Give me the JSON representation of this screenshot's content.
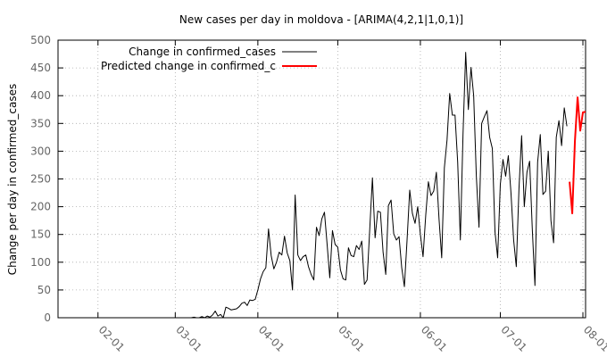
{
  "chart_data": {
    "type": "line",
    "title": "New cases per day in moldova -  [ARIMA(4,2,1|1,0,1)]",
    "xlabel": "",
    "ylabel": "Change per day in confirmed_cases",
    "ylim": [
      0,
      500
    ],
    "xlim": [
      "2020-01-17",
      "2020-08-02"
    ],
    "grid": true,
    "legend_position": "top-left",
    "y_ticks": [
      "0",
      "50",
      "100",
      "150",
      "200",
      "250",
      "300",
      "350",
      "400",
      "450",
      "500"
    ],
    "x_ticks": [
      {
        "date": "2020-02-01",
        "label": "02-01"
      },
      {
        "date": "2020-03-01",
        "label": "03-01"
      },
      {
        "date": "2020-04-01",
        "label": "04-01"
      },
      {
        "date": "2020-05-01",
        "label": "05-01"
      },
      {
        "date": "2020-06-01",
        "label": "06-01"
      },
      {
        "date": "2020-07-01",
        "label": "07-01"
      },
      {
        "date": "2020-08-01",
        "label": "08-01"
      }
    ],
    "series": [
      {
        "name": "Change in confirmed_cases",
        "color": "#000000",
        "points": [
          [
            "2020-01-22",
            0
          ],
          [
            "2020-02-01",
            0
          ],
          [
            "2020-02-15",
            0
          ],
          [
            "2020-03-01",
            0
          ],
          [
            "2020-03-07",
            0
          ],
          [
            "2020-03-08",
            1
          ],
          [
            "2020-03-09",
            0
          ],
          [
            "2020-03-10",
            0
          ],
          [
            "2020-03-11",
            2
          ],
          [
            "2020-03-12",
            0
          ],
          [
            "2020-03-13",
            3
          ],
          [
            "2020-03-14",
            1
          ],
          [
            "2020-03-15",
            5
          ],
          [
            "2020-03-16",
            12
          ],
          [
            "2020-03-17",
            3
          ],
          [
            "2020-03-18",
            6
          ],
          [
            "2020-03-19",
            0
          ],
          [
            "2020-03-20",
            19
          ],
          [
            "2020-03-21",
            17
          ],
          [
            "2020-03-22",
            14
          ],
          [
            "2020-03-23",
            15
          ],
          [
            "2020-03-24",
            16
          ],
          [
            "2020-03-25",
            20
          ],
          [
            "2020-03-26",
            26
          ],
          [
            "2020-03-27",
            28
          ],
          [
            "2020-03-28",
            22
          ],
          [
            "2020-03-29",
            32
          ],
          [
            "2020-03-30",
            31
          ],
          [
            "2020-03-31",
            33
          ],
          [
            "2020-04-01",
            50
          ],
          [
            "2020-04-02",
            70
          ],
          [
            "2020-04-03",
            83
          ],
          [
            "2020-04-04",
            90
          ],
          [
            "2020-04-05",
            160
          ],
          [
            "2020-04-06",
            112
          ],
          [
            "2020-04-07",
            88
          ],
          [
            "2020-04-08",
            100
          ],
          [
            "2020-04-09",
            118
          ],
          [
            "2020-04-10",
            113
          ],
          [
            "2020-04-11",
            147
          ],
          [
            "2020-04-12",
            117
          ],
          [
            "2020-04-13",
            103
          ],
          [
            "2020-04-14",
            50
          ],
          [
            "2020-04-15",
            221
          ],
          [
            "2020-04-16",
            113
          ],
          [
            "2020-04-17",
            103
          ],
          [
            "2020-04-18",
            110
          ],
          [
            "2020-04-19",
            113
          ],
          [
            "2020-04-20",
            92
          ],
          [
            "2020-04-21",
            78
          ],
          [
            "2020-04-22",
            68
          ],
          [
            "2020-04-23",
            163
          ],
          [
            "2020-04-24",
            148
          ],
          [
            "2020-04-25",
            178
          ],
          [
            "2020-04-26",
            190
          ],
          [
            "2020-04-27",
            132
          ],
          [
            "2020-04-28",
            72
          ],
          [
            "2020-04-29",
            157
          ],
          [
            "2020-04-30",
            132
          ],
          [
            "2020-05-01",
            127
          ],
          [
            "2020-05-02",
            86
          ],
          [
            "2020-05-03",
            70
          ],
          [
            "2020-05-04",
            68
          ],
          [
            "2020-05-05",
            126
          ],
          [
            "2020-05-06",
            112
          ],
          [
            "2020-05-07",
            110
          ],
          [
            "2020-05-08",
            130
          ],
          [
            "2020-05-09",
            123
          ],
          [
            "2020-05-10",
            138
          ],
          [
            "2020-05-11",
            60
          ],
          [
            "2020-05-12",
            68
          ],
          [
            "2020-05-13",
            160
          ],
          [
            "2020-05-14",
            252
          ],
          [
            "2020-05-15",
            144
          ],
          [
            "2020-05-16",
            192
          ],
          [
            "2020-05-17",
            190
          ],
          [
            "2020-05-18",
            118
          ],
          [
            "2020-05-19",
            78
          ],
          [
            "2020-05-20",
            202
          ],
          [
            "2020-05-21",
            212
          ],
          [
            "2020-05-22",
            151
          ],
          [
            "2020-05-23",
            140
          ],
          [
            "2020-05-24",
            146
          ],
          [
            "2020-05-25",
            90
          ],
          [
            "2020-05-26",
            56
          ],
          [
            "2020-05-27",
            140
          ],
          [
            "2020-05-28",
            230
          ],
          [
            "2020-05-29",
            188
          ],
          [
            "2020-05-30",
            170
          ],
          [
            "2020-05-31",
            200
          ],
          [
            "2020-06-01",
            150
          ],
          [
            "2020-06-02",
            110
          ],
          [
            "2020-06-03",
            184
          ],
          [
            "2020-06-04",
            245
          ],
          [
            "2020-06-05",
            220
          ],
          [
            "2020-06-06",
            228
          ],
          [
            "2020-06-07",
            262
          ],
          [
            "2020-06-08",
            178
          ],
          [
            "2020-06-09",
            108
          ],
          [
            "2020-06-10",
            270
          ],
          [
            "2020-06-11",
            320
          ],
          [
            "2020-06-12",
            404
          ],
          [
            "2020-06-13",
            365
          ],
          [
            "2020-06-14",
            365
          ],
          [
            "2020-06-15",
            280
          ],
          [
            "2020-06-16",
            140
          ],
          [
            "2020-06-17",
            330
          ],
          [
            "2020-06-18",
            478
          ],
          [
            "2020-06-19",
            375
          ],
          [
            "2020-06-20",
            451
          ],
          [
            "2020-06-21",
            400
          ],
          [
            "2020-06-22",
            255
          ],
          [
            "2020-06-23",
            163
          ],
          [
            "2020-06-24",
            350
          ],
          [
            "2020-06-25",
            362
          ],
          [
            "2020-06-26",
            373
          ],
          [
            "2020-06-27",
            325
          ],
          [
            "2020-06-28",
            305
          ],
          [
            "2020-06-29",
            155
          ],
          [
            "2020-06-30",
            108
          ],
          [
            "2020-07-01",
            240
          ],
          [
            "2020-07-02",
            285
          ],
          [
            "2020-07-03",
            255
          ],
          [
            "2020-07-04",
            292
          ],
          [
            "2020-07-05",
            225
          ],
          [
            "2020-07-06",
            140
          ],
          [
            "2020-07-07",
            92
          ],
          [
            "2020-07-08",
            232
          ],
          [
            "2020-07-09",
            328
          ],
          [
            "2020-07-10",
            200
          ],
          [
            "2020-07-11",
            262
          ],
          [
            "2020-07-12",
            282
          ],
          [
            "2020-07-13",
            160
          ],
          [
            "2020-07-14",
            58
          ],
          [
            "2020-07-15",
            280
          ],
          [
            "2020-07-16",
            330
          ],
          [
            "2020-07-17",
            222
          ],
          [
            "2020-07-18",
            228
          ],
          [
            "2020-07-19",
            300
          ],
          [
            "2020-07-20",
            175
          ],
          [
            "2020-07-21",
            135
          ],
          [
            "2020-07-22",
            325
          ],
          [
            "2020-07-23",
            355
          ],
          [
            "2020-07-24",
            310
          ],
          [
            "2020-07-25",
            378
          ],
          [
            "2020-07-26",
            345
          ]
        ]
      },
      {
        "name": "Predicted change in confirmed_c",
        "color": "#ff0000",
        "points": [
          [
            "2020-07-27",
            245
          ],
          [
            "2020-07-28",
            188
          ],
          [
            "2020-07-29",
            318
          ],
          [
            "2020-07-30",
            397
          ],
          [
            "2020-07-31",
            337
          ],
          [
            "2020-08-01",
            370
          ],
          [
            "2020-08-02",
            371
          ]
        ]
      }
    ]
  }
}
